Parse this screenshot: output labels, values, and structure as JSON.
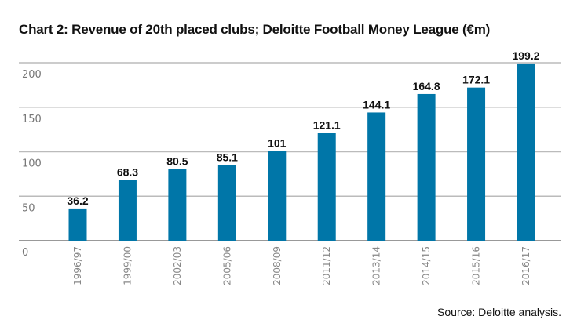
{
  "chart_data": {
    "type": "bar",
    "title": "Chart 2: Revenue of 20th placed clubs; Deloitte Football Money League (€m)",
    "xlabel": "",
    "ylabel": "",
    "categories": [
      "1996/97",
      "1999/00",
      "2002/03",
      "2005/06",
      "2008/09",
      "2011/12",
      "2013/14",
      "2014/15",
      "2015/16",
      "2016/17"
    ],
    "values": [
      36.2,
      68.3,
      80.5,
      85.1,
      101,
      121.1,
      144.1,
      164.8,
      172.1,
      199.2
    ],
    "data_labels": [
      "36.2",
      "68.3",
      "80.5",
      "85.1",
      "101",
      "121.1",
      "144.1",
      "164.8",
      "172.1",
      "199.2"
    ],
    "ylim": [
      0,
      200
    ],
    "yticks": [
      0,
      50,
      100,
      150,
      200
    ],
    "grid": true,
    "legend": "none",
    "bar_color": "#0076A8",
    "source": "Source: Deloitte analysis."
  }
}
